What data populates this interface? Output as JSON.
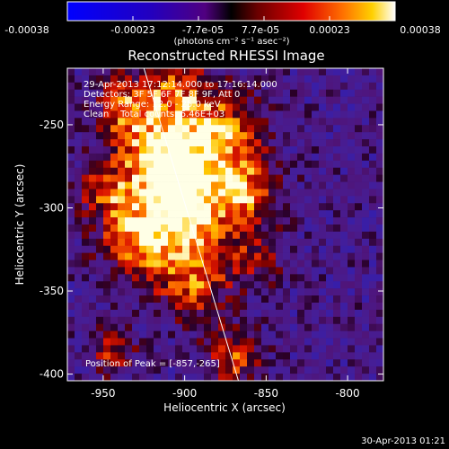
{
  "chart_data": {
    "type": "heatmap",
    "title": "Reconstructed RHESSI Image",
    "xlabel": "Heliocentric X (arcsec)",
    "ylabel": "Heliocentric Y (arcsec)",
    "xlim": [
      -972,
      -778
    ],
    "ylim": [
      -404,
      -216
    ],
    "xticks": [
      "-950",
      "-900",
      "-850",
      "-800"
    ],
    "yticks": [
      "-250",
      "-300",
      "-350",
      "-400"
    ],
    "colorbar": {
      "ticks": [
        "-0.00038",
        "-0.00023",
        "-7.7e-05",
        "7.7e-05",
        "0.00023",
        "0.00038"
      ],
      "label": "(photons cm⁻² s⁻¹ asec⁻²)",
      "range": [
        -0.00038,
        0.00038
      ]
    },
    "annotations": [
      "29-Apr-2013 17:12:14.000 to 17:16:14.000",
      "Detectors: 3F 5F 6F 7F 8F 9F, Att 0",
      "Energy Range: 12.0 - 25.0 keV",
      "Clean    Total counts: 6.46E+03"
    ],
    "peak_label": "Position of Peak = [-857,-265]",
    "peak": [
      -857,
      -265
    ],
    "limb_line": [
      [
        -925,
        -216
      ],
      [
        -867,
        -404
      ]
    ],
    "timestamp": "30-Apr-2013 01:21"
  }
}
